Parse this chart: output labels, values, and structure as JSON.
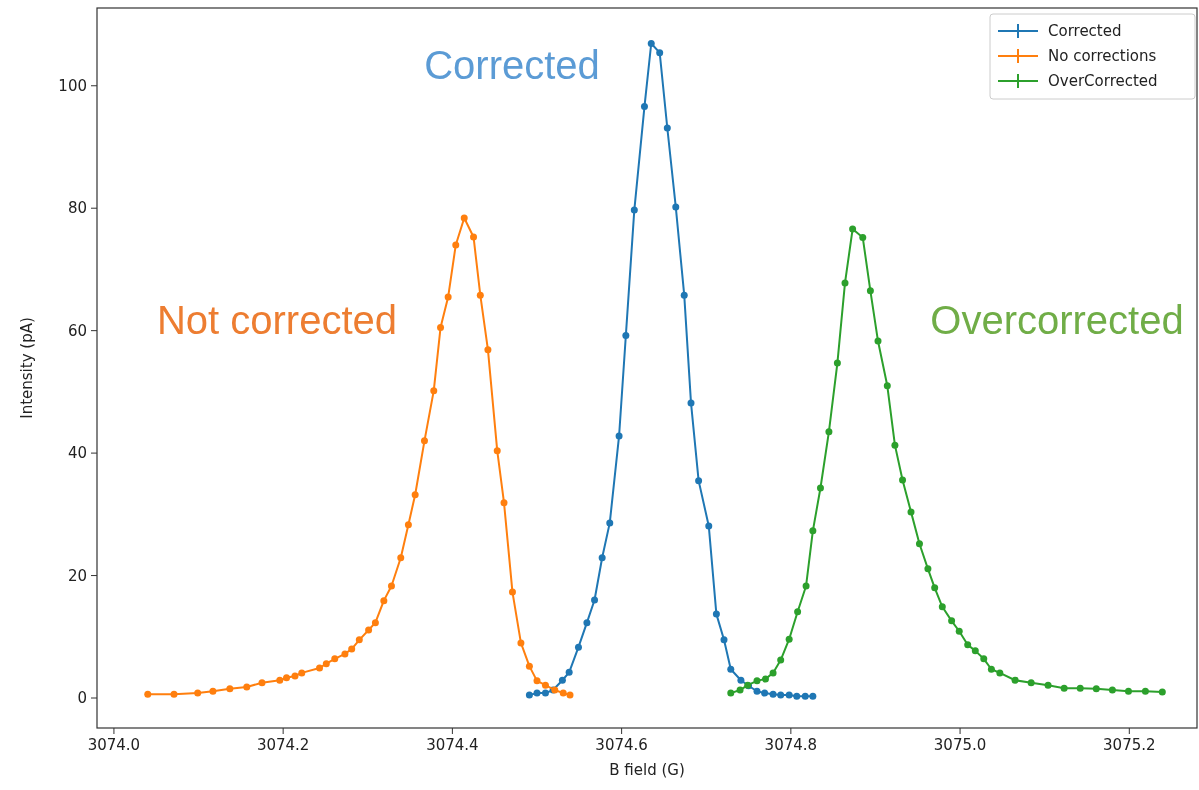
{
  "chart_data": {
    "type": "line",
    "xlabel": "B field (G)",
    "ylabel": "Intensity (pA)",
    "xlim": [
      3073.98,
      3075.28
    ],
    "ylim": [
      -4.9,
      112.7
    ],
    "xticks": [
      {
        "value": 3074.0,
        "label": "3074.0"
      },
      {
        "value": 3074.2,
        "label": "3074.2"
      },
      {
        "value": 3074.4,
        "label": "3074.4"
      },
      {
        "value": 3074.6,
        "label": "3074.6"
      },
      {
        "value": 3074.8,
        "label": "3074.8"
      },
      {
        "value": 3075.0,
        "label": "3075.0"
      },
      {
        "value": 3075.2,
        "label": "3075.2"
      }
    ],
    "yticks": [
      0,
      20,
      40,
      60,
      80,
      100
    ],
    "marker": "circle",
    "legend": "top right",
    "grid": false,
    "series": [
      {
        "name": "Corrected",
        "color": "#1f77b4",
        "x": [
          3074.491,
          3074.5,
          3074.51,
          3074.519,
          3074.53,
          3074.538,
          3074.549,
          3074.559,
          3074.568,
          3074.577,
          3074.586,
          3074.597,
          3074.605,
          3074.615,
          3074.627,
          3074.635,
          3074.645,
          3074.654,
          3074.664,
          3074.674,
          3074.682,
          3074.691,
          3074.703,
          3074.712,
          3074.721,
          3074.729,
          3074.741,
          3074.75,
          3074.76,
          3074.769,
          3074.779,
          3074.788,
          3074.798,
          3074.807,
          3074.817,
          3074.826
        ],
        "values": [
          0.5,
          0.8,
          0.8,
          1.3,
          2.9,
          4.2,
          8.3,
          12.3,
          16.0,
          22.9,
          28.6,
          42.8,
          59.2,
          79.7,
          96.6,
          106.9,
          105.4,
          93.1,
          80.2,
          65.8,
          48.2,
          35.5,
          28.1,
          13.7,
          9.5,
          4.7,
          2.9,
          2.0,
          1.1,
          0.8,
          0.6,
          0.5,
          0.5,
          0.3,
          0.3,
          0.3
        ]
      },
      {
        "name": "No corrections",
        "color": "#ff7f0e",
        "x": [
          3074.04,
          3074.071,
          3074.099,
          3074.117,
          3074.137,
          3074.157,
          3074.175,
          3074.196,
          3074.204,
          3074.214,
          3074.222,
          3074.243,
          3074.251,
          3074.261,
          3074.273,
          3074.281,
          3074.29,
          3074.301,
          3074.309,
          3074.319,
          3074.328,
          3074.339,
          3074.348,
          3074.356,
          3074.367,
          3074.378,
          3074.386,
          3074.395,
          3074.404,
          3074.414,
          3074.425,
          3074.433,
          3074.442,
          3074.453,
          3074.461,
          3074.471,
          3074.481,
          3074.491,
          3074.5,
          3074.51,
          3074.521,
          3074.531,
          3074.539
        ],
        "values": [
          0.6,
          0.6,
          0.8,
          1.1,
          1.5,
          1.8,
          2.5,
          2.9,
          3.3,
          3.6,
          4.1,
          4.9,
          5.6,
          6.4,
          7.2,
          8.0,
          9.5,
          11.1,
          12.3,
          15.9,
          18.3,
          22.9,
          28.3,
          33.2,
          42.0,
          50.2,
          60.5,
          65.5,
          74.0,
          78.4,
          75.3,
          65.8,
          56.9,
          40.4,
          31.9,
          17.3,
          9.0,
          5.2,
          2.8,
          2.1,
          1.3,
          0.8,
          0.5
        ]
      },
      {
        "name": "OverCorrected",
        "color": "#2ca02c",
        "x": [
          3074.729,
          3074.74,
          3074.749,
          3074.76,
          3074.77,
          3074.779,
          3074.788,
          3074.798,
          3074.808,
          3074.818,
          3074.826,
          3074.835,
          3074.845,
          3074.855,
          3074.864,
          3074.873,
          3074.885,
          3074.894,
          3074.903,
          3074.914,
          3074.923,
          3074.932,
          3074.942,
          3074.952,
          3074.962,
          3074.97,
          3074.979,
          3074.99,
          3074.999,
          3075.009,
          3075.018,
          3075.028,
          3075.037,
          3075.047,
          3075.065,
          3075.084,
          3075.104,
          3075.123,
          3075.142,
          3075.161,
          3075.18,
          3075.199,
          3075.219,
          3075.239
        ],
        "values": [
          0.8,
          1.3,
          2.1,
          2.8,
          3.1,
          4.1,
          6.2,
          9.6,
          14.1,
          18.3,
          27.3,
          34.3,
          43.5,
          54.7,
          67.8,
          76.6,
          75.2,
          66.5,
          58.3,
          51.0,
          41.3,
          35.6,
          30.4,
          25.2,
          21.1,
          18.0,
          14.9,
          12.6,
          10.9,
          8.7,
          7.7,
          6.4,
          4.7,
          4.1,
          2.9,
          2.5,
          2.1,
          1.6,
          1.6,
          1.5,
          1.3,
          1.1,
          1.1,
          1.0
        ]
      }
    ],
    "annotations": [
      "Corrected",
      "Not corrected",
      "Overcorrected"
    ]
  }
}
